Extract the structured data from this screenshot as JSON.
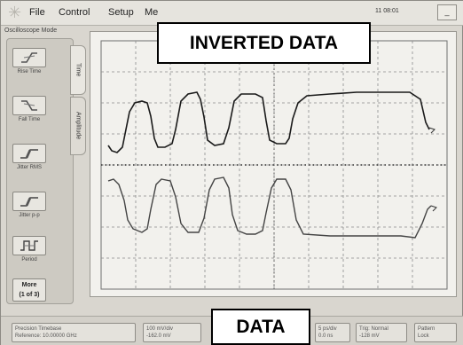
{
  "menubar": {
    "file": "File",
    "control": "Control",
    "setup": "Setup",
    "measure": "Me",
    "clock": "11 08:01",
    "min_label": "_"
  },
  "mode_label": "Oscilloscope Mode",
  "toolbar": {
    "tools": [
      {
        "label": "Rise Time",
        "icon": "rise-time-icon"
      },
      {
        "label": "Fall Time",
        "icon": "fall-time-icon"
      },
      {
        "label": "Jitter RMS",
        "icon": "jitter-rms-icon"
      },
      {
        "label": "Jitter p-p",
        "icon": "jitter-pp-icon"
      },
      {
        "label": "Period",
        "icon": "period-icon"
      }
    ],
    "more_line1": "More",
    "more_line2": "(1 of 3)"
  },
  "tabs": {
    "time": "Time",
    "amplitude": "Amplitude"
  },
  "waveforms": {
    "upper_color": "#1a1a1a",
    "lower_color": "#444444",
    "grid_color": "#8a8a8a"
  },
  "bottombar": {
    "timebase_line1": "Precision Timebase",
    "timebase_line2": "Reference: 10.00000 GHz",
    "scale_line1": "100 mV/div",
    "scale_line2": "-162.0 mV",
    "time_line1": "5 ps/div",
    "time_line2": "0.0 ns",
    "trig_line1": "Trig: Normal",
    "trig_line2": "-128 mV",
    "pattern_line1": "Pattern",
    "pattern_line2": "Lock"
  },
  "callouts": {
    "top": "INVERTED DATA",
    "bottom": "DATA"
  }
}
